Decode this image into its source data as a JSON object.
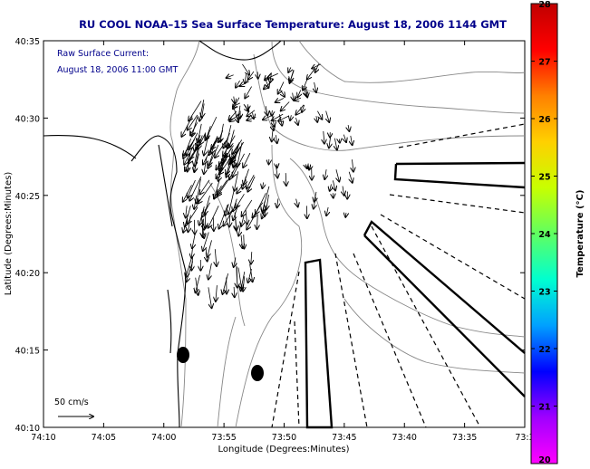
{
  "title": "RU COOL  NOAA–15  Sea Surface Temperature:  August 18, 2006 1144 GMT",
  "legend": {
    "line1": "Raw Surface Current:",
    "line2": "August 18, 2006 11:00 GMT"
  },
  "scale": {
    "label": "50 cm/s"
  },
  "x_axis": {
    "label": "Longitude (Degrees:Minutes)",
    "ticks": [
      "74:10",
      "74:05",
      "74:00",
      "73:55",
      "73:50",
      "73:45",
      "73:40",
      "73:35",
      "73:3"
    ]
  },
  "y_axis": {
    "label": "Latitude (Degrees:Minutes)",
    "ticks": [
      "40:35",
      "40:30",
      "40:25",
      "40:20",
      "40:15",
      "40:10"
    ]
  },
  "colorbar": {
    "label": "Temperature (°C)",
    "ticks": [
      "28",
      "27",
      "26",
      "25",
      "24",
      "23",
      "22",
      "21",
      "20"
    ],
    "colors": [
      "#c00000",
      "#ff0000",
      "#ff8000",
      "#ffd000",
      "#c8ff00",
      "#60ff60",
      "#00ffd0",
      "#00a0ff",
      "#0000ff",
      "#a000ff",
      "#ff00ff"
    ]
  },
  "colors": {
    "title": "#00008b",
    "contour": "#777777",
    "coast": "#000000"
  }
}
